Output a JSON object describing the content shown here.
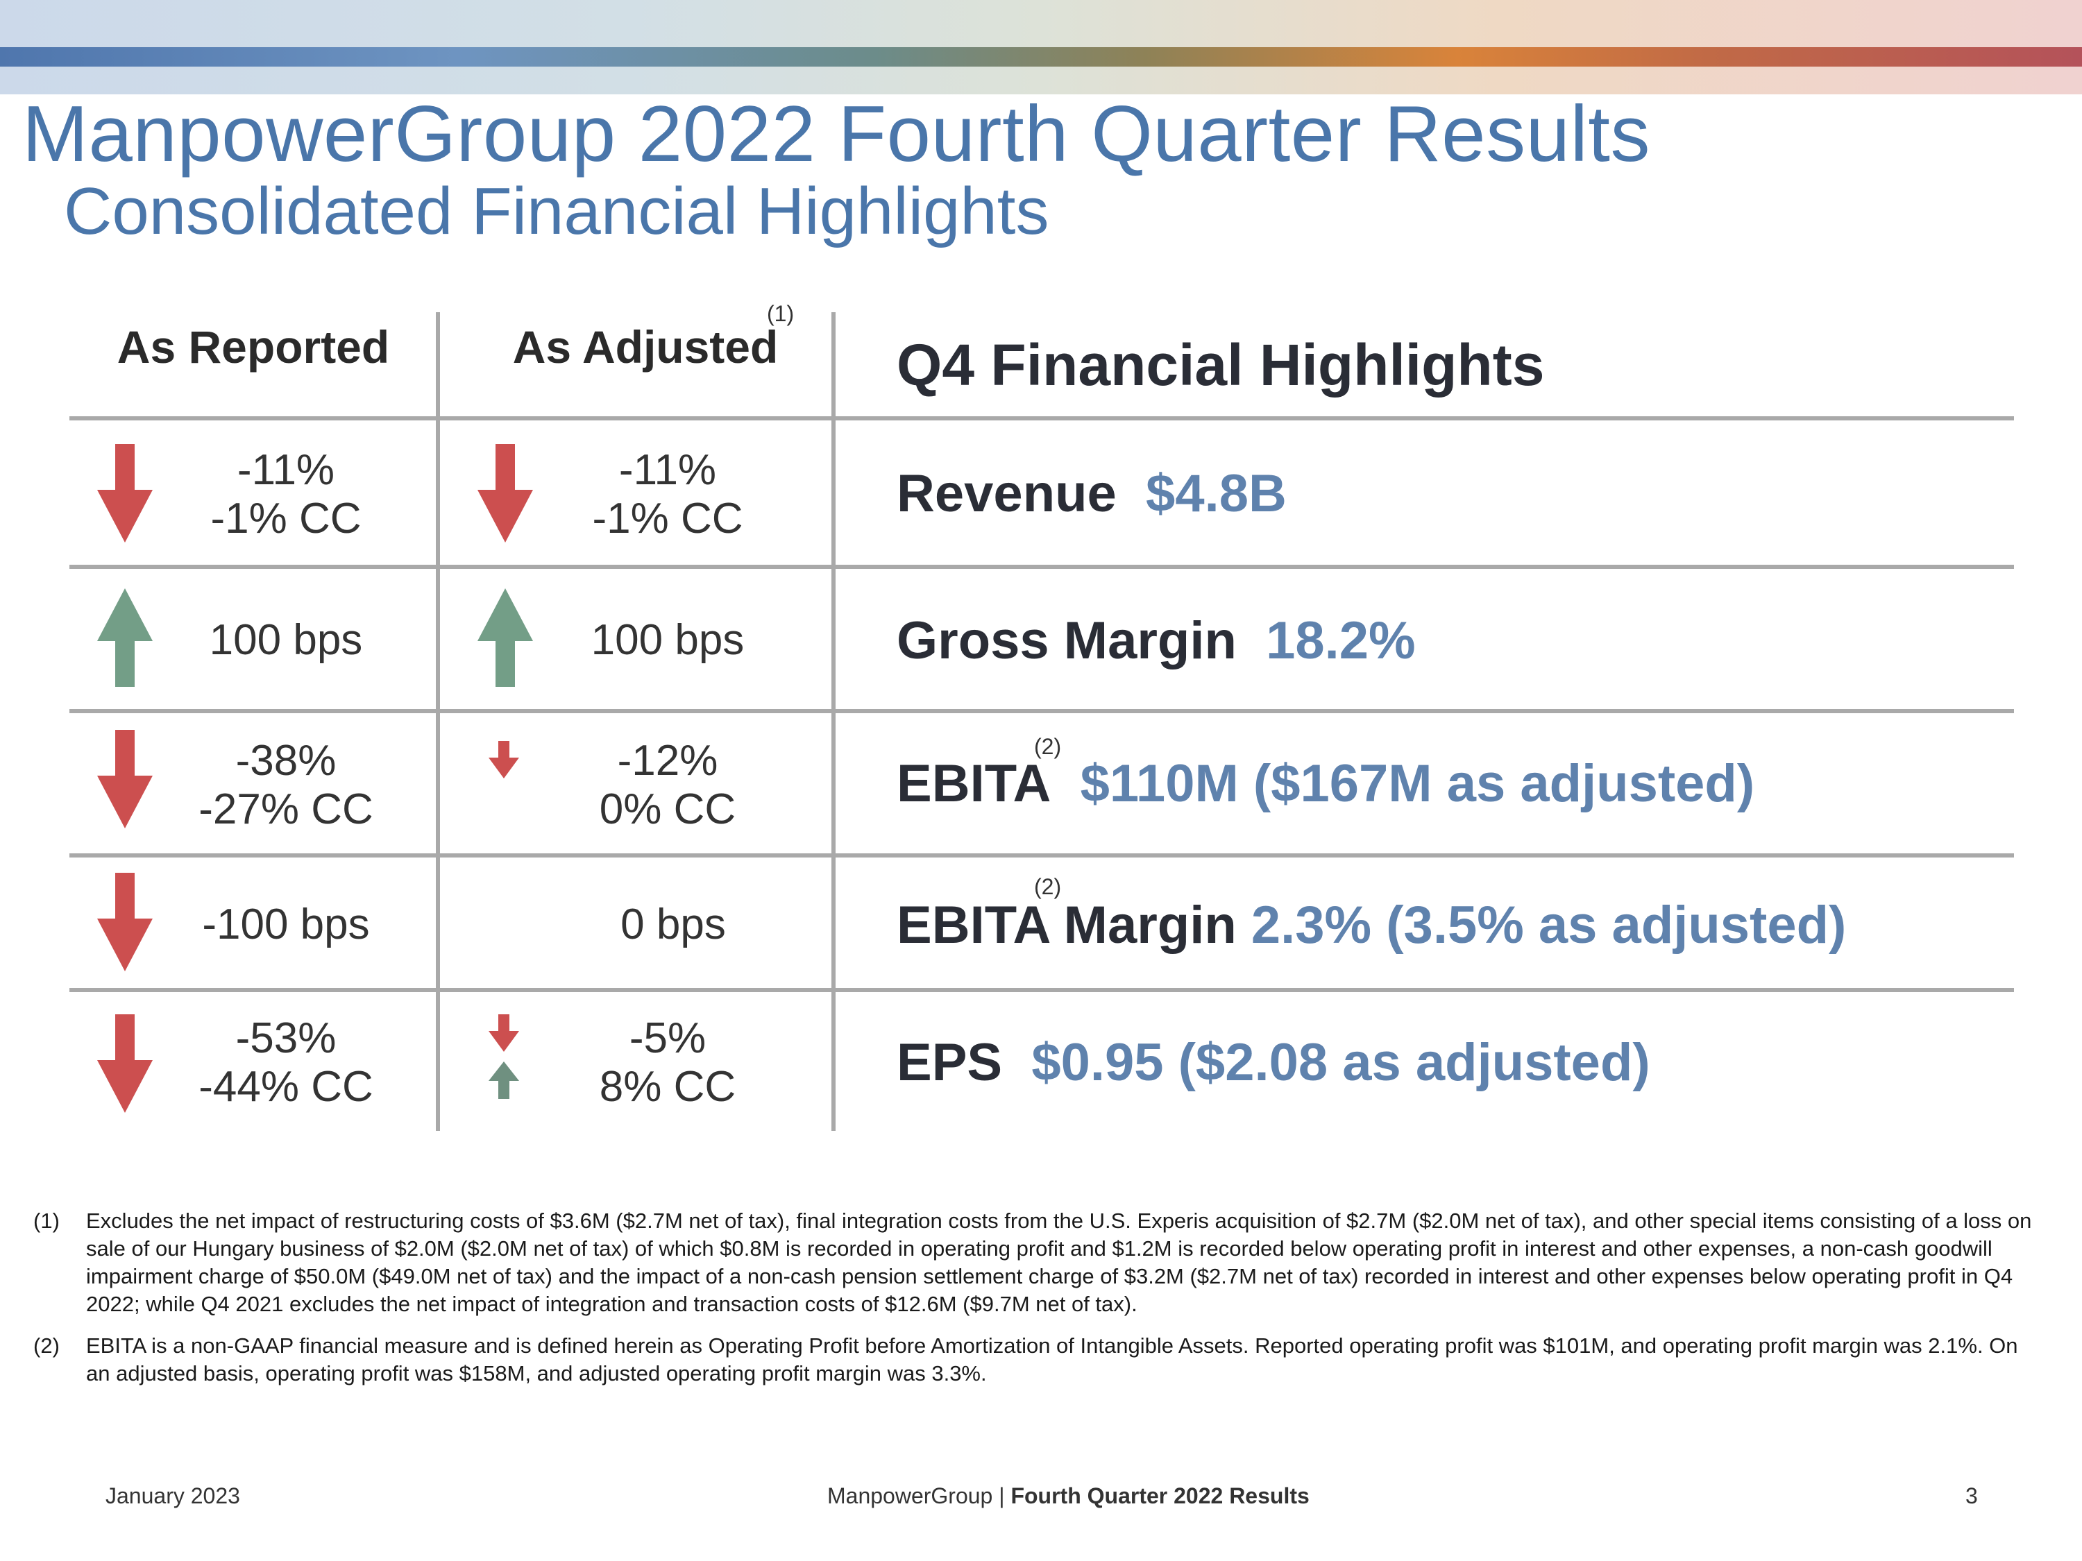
{
  "header": {
    "title": "ManpowerGroup 2022 Fourth Quarter Results",
    "subtitle": "Consolidated Financial Highlights"
  },
  "colors": {
    "title_blue": "#4a76aa",
    "value_blue": "#5f82ad",
    "arrow_down_red": "#cc4f4f",
    "arrow_up_green": "#739e87"
  },
  "table": {
    "col_reported": "As Reported",
    "col_adjusted": "As Adjusted",
    "col_adjusted_note": "(1)",
    "col_highlights": "Q4 Financial Highlights",
    "rows": [
      {
        "reported": {
          "line1": "-11%",
          "line2": "-1% CC",
          "icon": "arrow-down-icon"
        },
        "adjusted": {
          "line1": "-11%",
          "line2": "-1% CC",
          "icon": "arrow-down-icon"
        },
        "label": "Revenue",
        "note": "",
        "value": "$4.8B"
      },
      {
        "reported": {
          "line1": "100 bps",
          "line2": "",
          "icon": "arrow-up-icon"
        },
        "adjusted": {
          "line1": "100 bps",
          "line2": "",
          "icon": "arrow-up-icon"
        },
        "label": "Gross Margin",
        "note": "",
        "value": "18.2%"
      },
      {
        "reported": {
          "line1": "-38%",
          "line2": "-27% CC",
          "icon": "arrow-down-icon"
        },
        "adjusted": {
          "line1": "-12%",
          "line2": "0% CC",
          "icon": "small-arrow-down-icon"
        },
        "label": "EBITA",
        "note": "(2)",
        "value": "$110M ($167M as adjusted)"
      },
      {
        "reported": {
          "line1": "-100 bps",
          "line2": "",
          "icon": "arrow-down-icon"
        },
        "adjusted": {
          "line1": "0 bps",
          "line2": "",
          "icon": ""
        },
        "label": "EBITA Margin",
        "note": "(2)",
        "value": "2.3% (3.5% as adjusted)"
      },
      {
        "reported": {
          "line1": "-53%",
          "line2": "-44% CC",
          "icon": "arrow-down-icon"
        },
        "adjusted": {
          "line1": "-5%",
          "line2": "8% CC",
          "icon": "small-arrow-down-up-icon"
        },
        "label": "EPS",
        "note": "",
        "value": "$0.95 ($2.08 as adjusted)"
      }
    ]
  },
  "footnotes": [
    {
      "num": "(1)",
      "text": "Excludes the net impact of restructuring costs of $3.6M ($2.7M net of tax), final integration costs from the U.S. Experis acquisition of $2.7M ($2.0M net of tax), and other special items consisting of a loss on sale of our Hungary business of $2.0M ($2.0M net of tax) of which $0.8M is recorded in operating profit and $1.2M is recorded below operating profit in interest and other expenses, a non-cash goodwill impairment charge of $50.0M ($49.0M net of tax) and the impact of a non-cash pension settlement charge of $3.2M ($2.7M net of tax) recorded in interest and other expenses below operating profit in Q4 2022; while Q4 2021 excludes the net impact of integration and transaction costs of $12.6M ($9.7M net of tax)."
    },
    {
      "num": "(2)",
      "text": "EBITA is a non-GAAP financial measure and is defined herein as Operating Profit before Amortization of Intangible Assets. Reported operating profit was $101M, and operating profit margin was 2.1%. On an adjusted basis, operating profit was $158M, and adjusted operating profit margin was 3.3%."
    }
  ],
  "footer": {
    "date": "January 2023",
    "company": "ManpowerGroup",
    "separator": "|",
    "report": "Fourth Quarter 2022 Results",
    "page": "3"
  }
}
